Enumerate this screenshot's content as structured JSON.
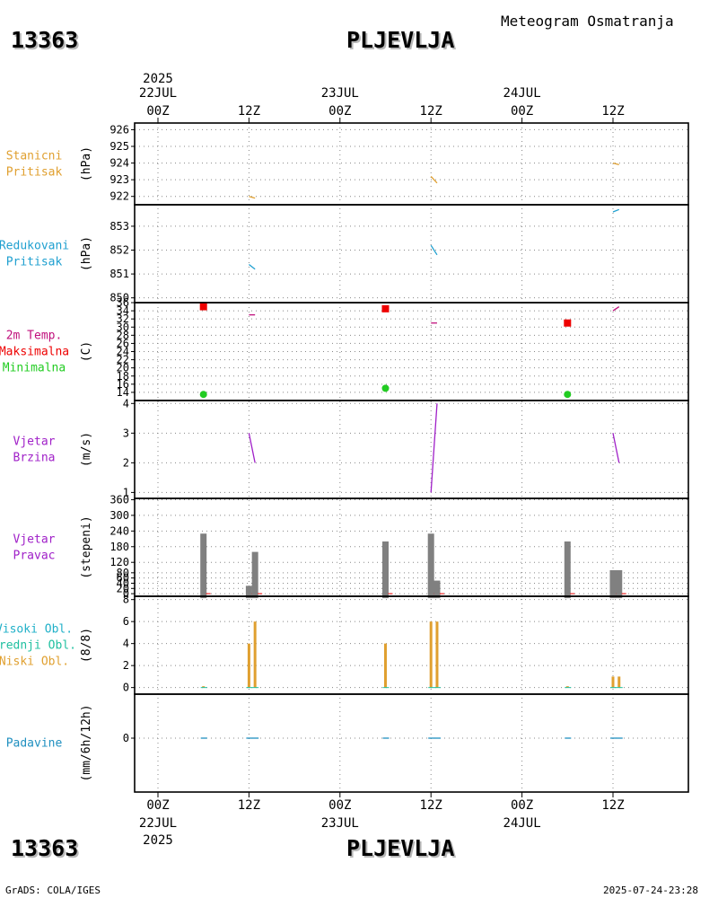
{
  "header": {
    "product_title": "Meteogram Osmatranja",
    "station_id": "13363",
    "station_name": "PLJEVLJA"
  },
  "footer": {
    "credit": "GrADS: COLA/IGES",
    "generated": "2025-07-24-23:28"
  },
  "time_axis": {
    "year": "2025",
    "ticks": [
      {
        "hour": "00Z",
        "date": "22JUL"
      },
      {
        "hour": "12Z",
        "date": ""
      },
      {
        "hour": "00Z",
        "date": "23JUL"
      },
      {
        "hour": "12Z",
        "date": ""
      },
      {
        "hour": "00Z",
        "date": "24JUL"
      },
      {
        "hour": "12Z",
        "date": ""
      }
    ]
  },
  "colors": {
    "station_pressure": "#e0a030",
    "reduced_pressure": "#20a0d0",
    "temp": "#c0107c",
    "tmax": "#ee0000",
    "tmin": "#22cc22",
    "wind": "#a020c8",
    "bars": "#808080",
    "high_cloud": "#20b0c8",
    "mid_cloud": "#20c0a0",
    "low_cloud": "#e0a030",
    "precip": "#2090c0"
  },
  "chart_data": [
    {
      "type": "line",
      "panel": "station_pressure",
      "labels": [
        "Stanicni",
        "Pritisak"
      ],
      "ylabel": "(hPa)",
      "ylim": [
        921.5,
        926.4
      ],
      "yticks": [
        922,
        923,
        924,
        925,
        926
      ],
      "segments": [
        {
          "x": [
            12,
            12.8
          ],
          "y": [
            922.0,
            921.9
          ]
        },
        {
          "x": [
            36,
            36.8
          ],
          "y": [
            923.2,
            922.8
          ]
        },
        {
          "x": [
            60,
            60.8
          ],
          "y": [
            924.0,
            923.9
          ]
        }
      ]
    },
    {
      "type": "line",
      "panel": "reduced_pressure",
      "labels": [
        "Redukovani",
        "Pritisak"
      ],
      "ylabel": "(hPa)",
      "ylim": [
        849.8,
        853.9
      ],
      "yticks": [
        850,
        851,
        852,
        853
      ],
      "segments": [
        {
          "x": [
            12,
            12.8
          ],
          "y": [
            851.4,
            851.2
          ]
        },
        {
          "x": [
            36,
            36.8
          ],
          "y": [
            852.2,
            851.8
          ]
        },
        {
          "x": [
            60,
            60.8
          ],
          "y": [
            853.6,
            853.7
          ]
        }
      ]
    },
    {
      "type": "line",
      "panel": "temperature",
      "labels": [
        "2m Temp.",
        "Maksimalna",
        "Minimalna"
      ],
      "ylabel": "(C)",
      "ylim": [
        12,
        36
      ],
      "yticks": [
        14,
        16,
        18,
        20,
        22,
        24,
        26,
        28,
        30,
        32,
        34,
        36
      ],
      "temp_segments": [
        {
          "x": [
            12,
            12.8
          ],
          "y": [
            33,
            33
          ]
        },
        {
          "x": [
            36,
            36.8
          ],
          "y": [
            31,
            31
          ]
        },
        {
          "x": [
            60,
            60.8
          ],
          "y": [
            34,
            35
          ]
        }
      ],
      "tmax_points": [
        {
          "x": 6,
          "y": 35
        },
        {
          "x": 30,
          "y": 34.5
        },
        {
          "x": 54,
          "y": 31
        }
      ],
      "tmin_points": [
        {
          "x": 6,
          "y": 13.5
        },
        {
          "x": 30,
          "y": 15
        },
        {
          "x": 54,
          "y": 13.5
        }
      ]
    },
    {
      "type": "line",
      "panel": "wind_speed",
      "labels": [
        "Vjetar",
        "Brzina"
      ],
      "ylabel": "(m/s)",
      "ylim": [
        0.8,
        4.1
      ],
      "yticks": [
        1,
        2,
        3,
        4
      ],
      "segments": [
        {
          "x": [
            12,
            12.8
          ],
          "y": [
            3,
            2
          ]
        },
        {
          "x": [
            36,
            36.8
          ],
          "y": [
            1,
            4
          ]
        },
        {
          "x": [
            60,
            60.8
          ],
          "y": [
            3,
            2
          ]
        }
      ]
    },
    {
      "type": "bar",
      "panel": "wind_direction",
      "labels": [
        "Vjetar",
        "Pravac"
      ],
      "ylabel": "(stepeni)",
      "ylim": [
        -10,
        365
      ],
      "yticks": [
        0,
        20,
        40,
        60,
        80,
        120,
        180,
        240,
        300,
        360
      ],
      "bars": [
        {
          "x": 6,
          "value": 230
        },
        {
          "x": 12,
          "value": 30
        },
        {
          "x": 12.8,
          "value": 160
        },
        {
          "x": 30,
          "value": 200
        },
        {
          "x": 36,
          "value": 230
        },
        {
          "x": 36.8,
          "value": 50
        },
        {
          "x": 54,
          "value": 200
        },
        {
          "x": 60,
          "value": 90
        },
        {
          "x": 60.8,
          "value": 90
        }
      ]
    },
    {
      "type": "bar",
      "panel": "cloud_cover",
      "labels": [
        "Visoki Obl.",
        "Srednji Obl.",
        "Niski Obl."
      ],
      "ylabel": "(8/8)",
      "ylim": [
        -0.6,
        8.3
      ],
      "yticks": [
        0,
        2,
        4,
        6,
        8
      ],
      "low_cloud_bars": [
        {
          "x": 6,
          "value": 0
        },
        {
          "x": 12,
          "value": 4
        },
        {
          "x": 12.8,
          "value": 6
        },
        {
          "x": 30,
          "value": 4
        },
        {
          "x": 36,
          "value": 6
        },
        {
          "x": 36.8,
          "value": 6
        },
        {
          "x": 54,
          "value": 0
        },
        {
          "x": 60,
          "value": 1
        },
        {
          "x": 60.8,
          "value": 1
        }
      ]
    },
    {
      "type": "bar",
      "panel": "precipitation",
      "labels": [
        "Padavine"
      ],
      "ylabel": "(mm/6h/12h)",
      "ylim": [
        -4.9,
        4.0
      ],
      "yticks": [
        0
      ],
      "marks": [
        {
          "x": 6,
          "value": 0
        },
        {
          "x": 12,
          "value": 0
        },
        {
          "x": 12.8,
          "value": 0
        },
        {
          "x": 30,
          "value": 0
        },
        {
          "x": 36,
          "value": 0
        },
        {
          "x": 36.8,
          "value": 0
        },
        {
          "x": 54,
          "value": 0
        },
        {
          "x": 60,
          "value": 0
        },
        {
          "x": 60.8,
          "value": 0
        }
      ]
    }
  ]
}
